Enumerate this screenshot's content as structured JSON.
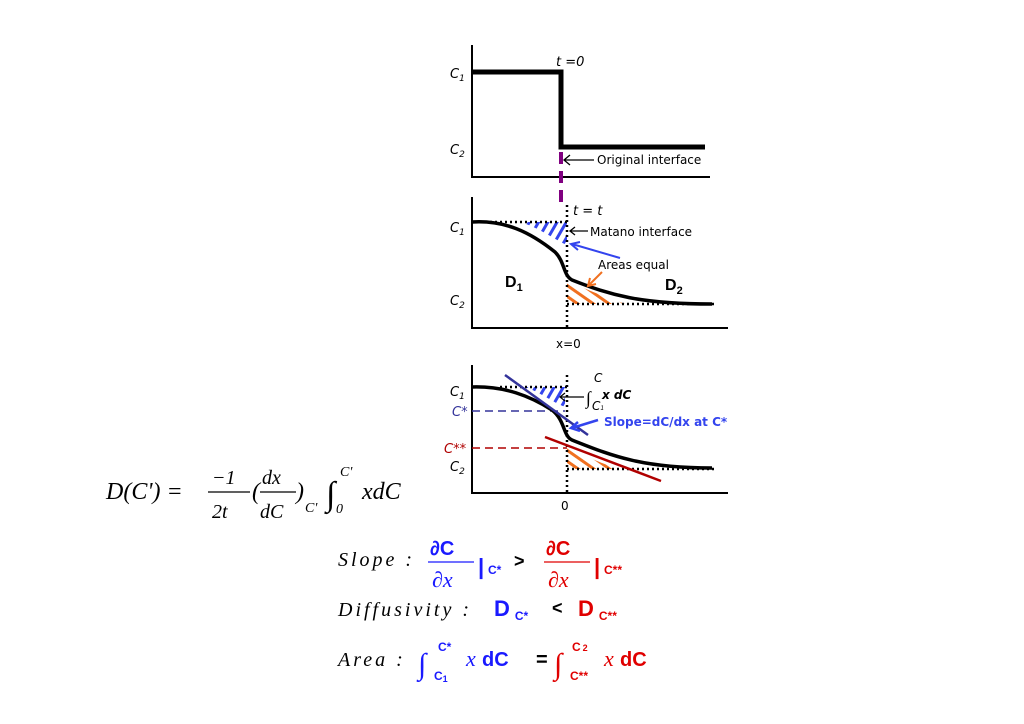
{
  "panel1": {
    "c1": "C",
    "c1_sub": "1",
    "c2": "C",
    "c2_sub": "2",
    "time": "t =0",
    "annotation": "Original interface"
  },
  "panel2": {
    "c1": "C",
    "c1_sub": "1",
    "c2": "C",
    "c2_sub": "2",
    "time": "t = t",
    "matano": "Matano interface",
    "areas": "Areas equal",
    "d1": "D",
    "d1_sub": "1",
    "d2": "D",
    "d2_sub": "2",
    "x0": "x=0"
  },
  "panel3": {
    "c1": "C",
    "c1_sub": "1",
    "cstar": "C*",
    "cstarstar": "C**",
    "c2": "C",
    "c2_sub": "2",
    "integral": "x dC",
    "int_upper": "C",
    "int_lower": "C",
    "int_lower_sub": "1",
    "slope": "Slope=dC/dx  at C*",
    "zero": "0"
  },
  "formula": {
    "lhs": "D(C') =",
    "num": "−1",
    "den": "2t",
    "dx": "dx",
    "dc": "dC",
    "sub": "C'",
    "upper": "C'",
    "lower": "0",
    "tail": "xdC"
  },
  "equations": {
    "slope_label": "Slope :",
    "dC": "∂C",
    "dx": "∂x",
    "at_cstar": "C*",
    "gt": ">",
    "at_cstarstar": "C**",
    "diff_label": "Diffusivity :",
    "D": "D",
    "lt": "<",
    "area_label": "Area :",
    "lower1": "C",
    "lower1_sub": "1",
    "upper1": "C*",
    "xd": "x",
    "dC2": "dC",
    "eq": "=",
    "upper2": "C",
    "upper2_sub": "2",
    "lower2": "C**"
  },
  "colors": {
    "blue": "#1a1aff",
    "red": "#e00000",
    "navy": "#33339a",
    "darkred": "#b00000",
    "orange": "#f07020",
    "purple": "#800080"
  }
}
